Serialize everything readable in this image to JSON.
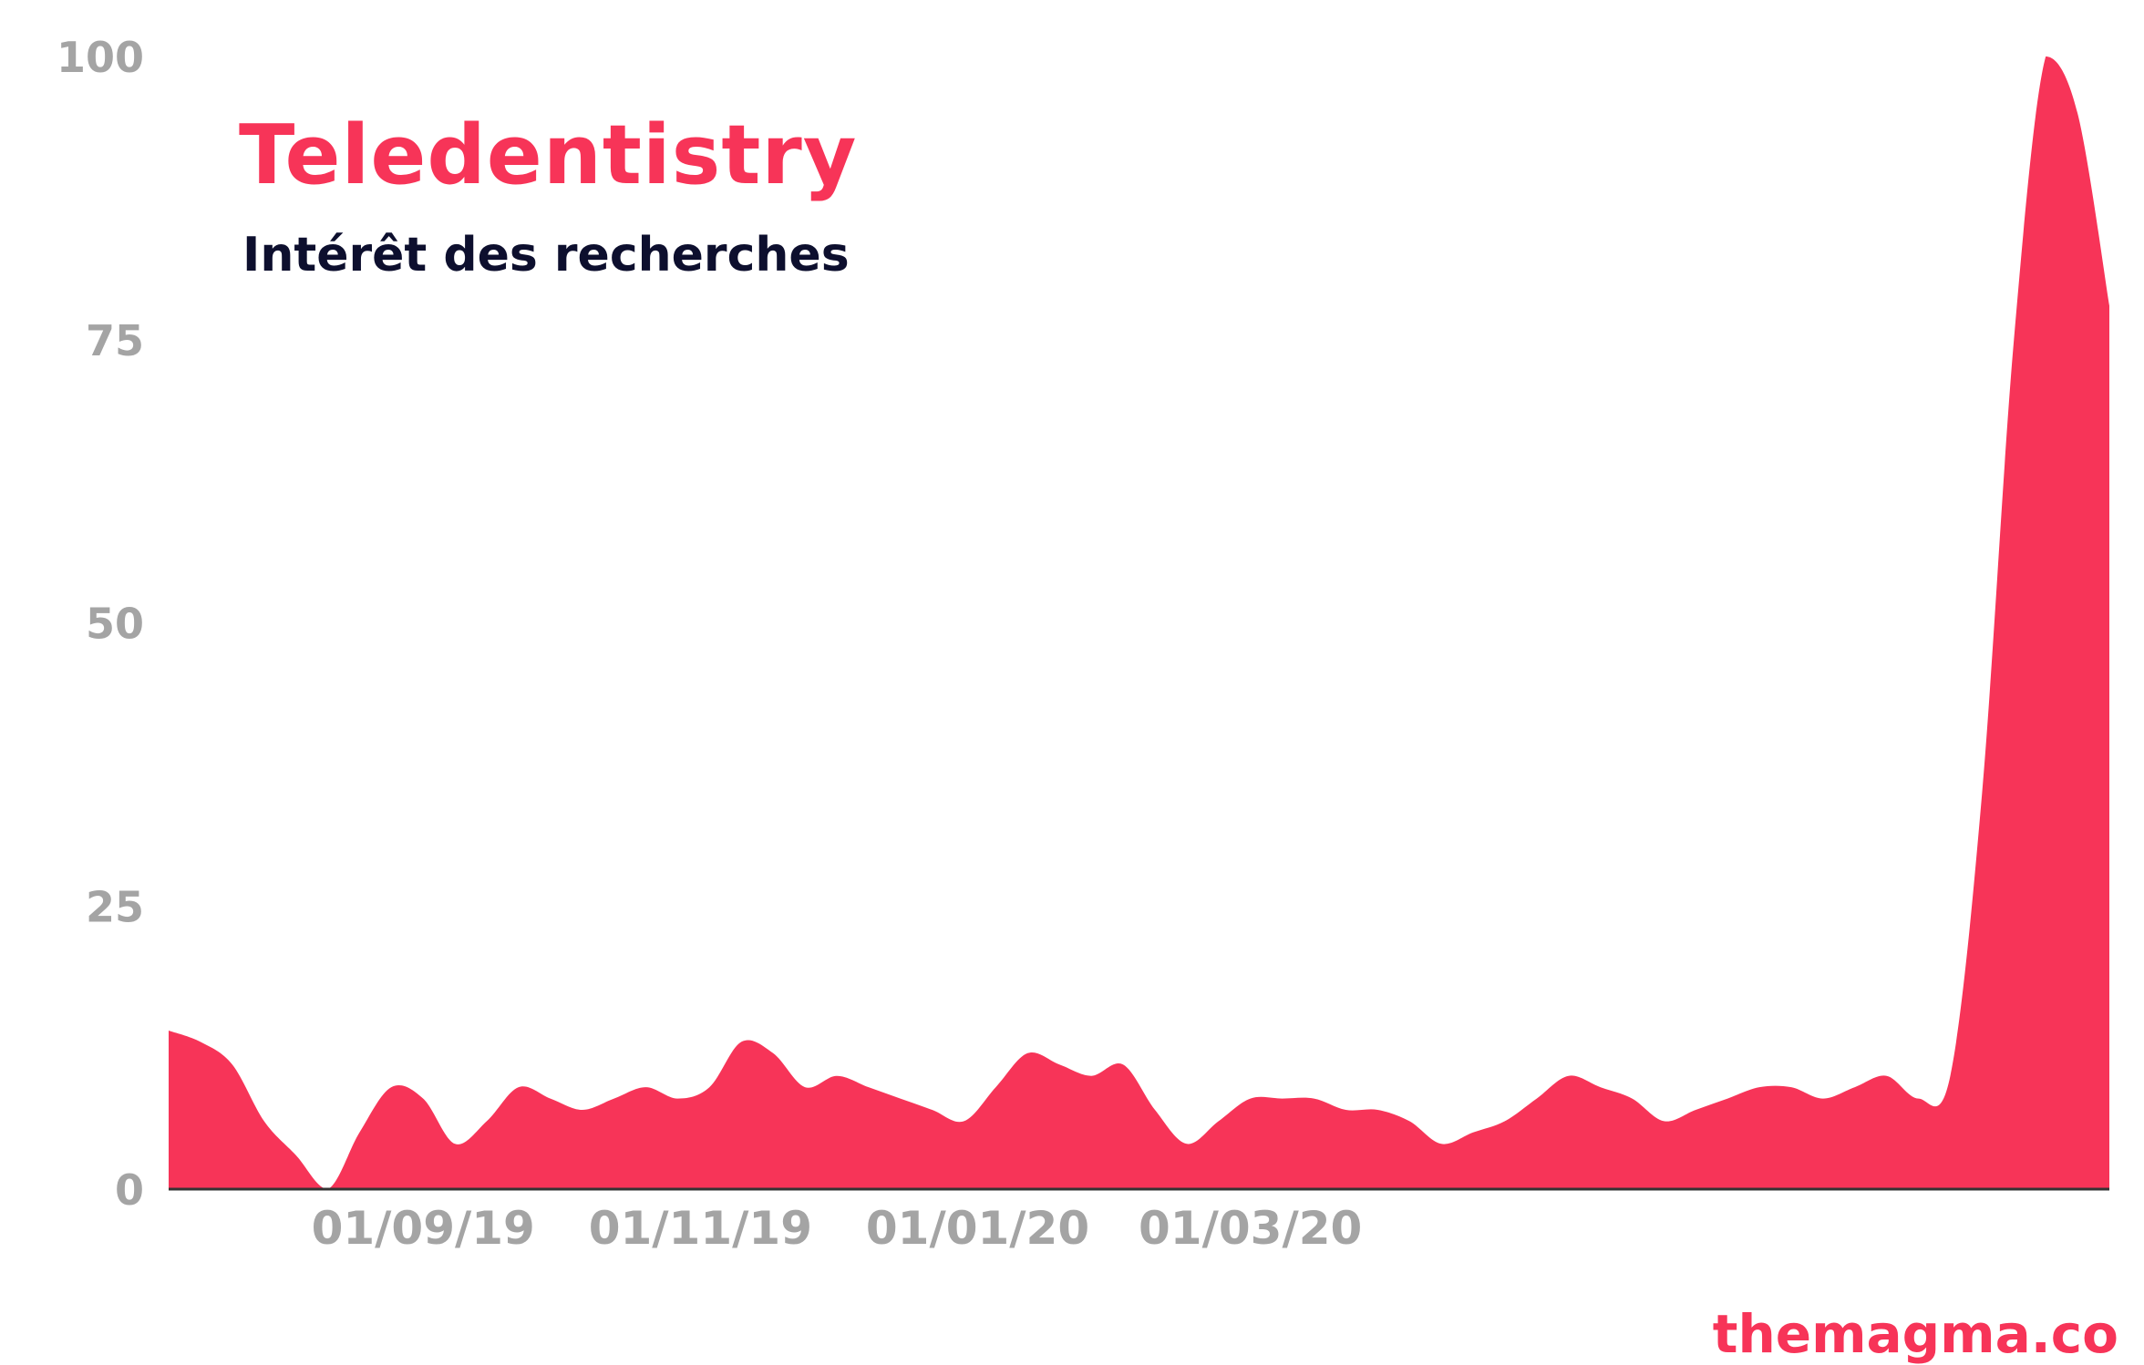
{
  "colors": {
    "accent": "#f73458",
    "subtitle": "#0d0f2e",
    "tick": "#a4a4a4",
    "axis": "#333333"
  },
  "chart_data": {
    "type": "area",
    "title": "Teledentistry",
    "subtitle": "Intérêt des recherches",
    "watermark": "themagma.co",
    "xlabel": "",
    "ylabel": "",
    "ylim": [
      0,
      100
    ],
    "y_ticks": [
      "0",
      "25",
      "50",
      "75",
      "100"
    ],
    "x_ticks": [
      "01/09/19",
      "01/11/19",
      "01/01/20",
      "01/03/20"
    ],
    "x_tick_dates": [
      "2019-09-01",
      "2019-11-01",
      "2020-01-01",
      "2020-03-01"
    ],
    "grid": false,
    "legend": "none",
    "series": [
      {
        "points": [
          [
            "2019-07-07",
            14
          ],
          [
            "2019-07-14",
            13
          ],
          [
            "2019-07-21",
            11
          ],
          [
            "2019-07-28",
            6
          ],
          [
            "2019-08-04",
            3
          ],
          [
            "2019-08-11",
            0
          ],
          [
            "2019-08-18",
            5
          ],
          [
            "2019-08-25",
            9
          ],
          [
            "2019-09-01",
            8
          ],
          [
            "2019-09-08",
            4
          ],
          [
            "2019-09-15",
            6
          ],
          [
            "2019-09-22",
            9
          ],
          [
            "2019-09-29",
            8
          ],
          [
            "2019-10-06",
            7
          ],
          [
            "2019-10-13",
            8
          ],
          [
            "2019-10-20",
            9
          ],
          [
            "2019-10-27",
            8
          ],
          [
            "2019-11-03",
            9
          ],
          [
            "2019-11-10",
            13
          ],
          [
            "2019-11-17",
            12
          ],
          [
            "2019-11-24",
            9
          ],
          [
            "2019-12-01",
            10
          ],
          [
            "2019-12-08",
            9
          ],
          [
            "2019-12-15",
            8
          ],
          [
            "2019-12-22",
            7
          ],
          [
            "2019-12-29",
            6
          ],
          [
            "2020-01-05",
            9
          ],
          [
            "2020-01-12",
            12
          ],
          [
            "2020-01-19",
            11
          ],
          [
            "2020-01-26",
            10
          ],
          [
            "2020-02-02",
            11
          ],
          [
            "2020-02-09",
            7
          ],
          [
            "2020-02-16",
            4
          ],
          [
            "2020-02-23",
            6
          ],
          [
            "2020-03-01",
            8
          ],
          [
            "2020-03-08",
            8
          ],
          [
            "2020-03-15",
            8
          ],
          [
            "2020-03-22",
            7
          ],
          [
            "2020-03-29",
            7
          ],
          [
            "2020-04-05",
            6
          ],
          [
            "2020-04-12",
            4
          ],
          [
            "2020-04-19",
            5
          ],
          [
            "2020-04-26",
            6
          ],
          [
            "2020-05-03",
            8
          ],
          [
            "2020-05-10",
            10
          ],
          [
            "2020-05-17",
            9
          ],
          [
            "2020-05-24",
            8
          ],
          [
            "2020-05-31",
            6
          ],
          [
            "2020-06-07",
            7
          ],
          [
            "2020-06-14",
            8
          ],
          [
            "2020-06-21",
            9
          ],
          [
            "2020-06-28",
            9
          ],
          [
            "2020-07-05",
            8
          ],
          [
            "2020-07-12",
            9
          ],
          [
            "2020-07-19",
            10
          ],
          [
            "2020-07-26",
            8
          ],
          [
            "2020-08-02",
            10
          ],
          [
            "2020-08-09",
            35
          ],
          [
            "2020-08-16",
            75
          ],
          [
            "2020-08-23",
            100
          ],
          [
            "2020-08-30",
            95
          ],
          [
            "2020-09-06",
            78
          ]
        ]
      }
    ]
  }
}
